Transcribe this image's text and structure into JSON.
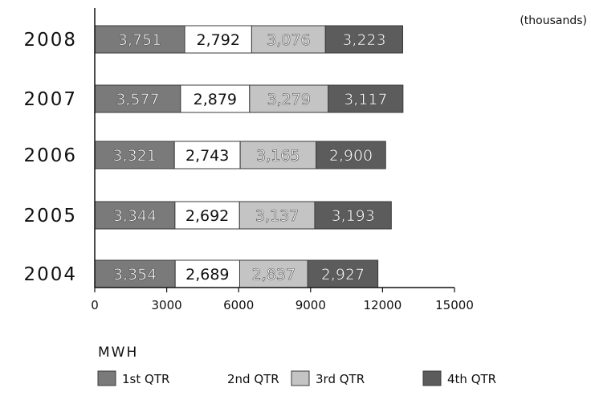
{
  "chart_data": {
    "type": "bar",
    "orientation": "horizontal",
    "stacked": true,
    "categories": [
      "2008",
      "2007",
      "2006",
      "2005",
      "2004"
    ],
    "series": [
      {
        "name": "1st QTR",
        "values": [
          3751,
          3577,
          3321,
          3344,
          3354
        ],
        "color": "#7a7a7a",
        "label_color": "#ffffff"
      },
      {
        "name": "2nd QTR",
        "values": [
          2792,
          2879,
          2743,
          2692,
          2689
        ],
        "color": "#ffffff",
        "label_color": "#111111"
      },
      {
        "name": "3rd QTR",
        "values": [
          3076,
          3279,
          3165,
          3137,
          2837
        ],
        "color": "#c4c4c4",
        "label_color": "#ffffff"
      },
      {
        "name": "4th QTR",
        "values": [
          3223,
          3117,
          2900,
          3193,
          2927
        ],
        "color": "#5c5c5c",
        "label_color": "#ffffff"
      }
    ],
    "data_labels": [
      [
        "3,751",
        "2,792",
        "3,076",
        "3,223"
      ],
      [
        "3,577",
        "2,879",
        "3,279",
        "3,117"
      ],
      [
        "3,321",
        "2,743",
        "3,165",
        "2,900"
      ],
      [
        "3,344",
        "2,692",
        "3,137",
        "3,193"
      ],
      [
        "3,354",
        "2,689",
        "2,837",
        "2,927"
      ]
    ],
    "x_ticks": [
      "0",
      "3000",
      "6000",
      "9000",
      "12000",
      "15000"
    ],
    "xlim": [
      0,
      15000
    ],
    "xlabel": "MWH",
    "unit_note": "(thousands)",
    "grid": false,
    "legend_position": "bottom"
  }
}
